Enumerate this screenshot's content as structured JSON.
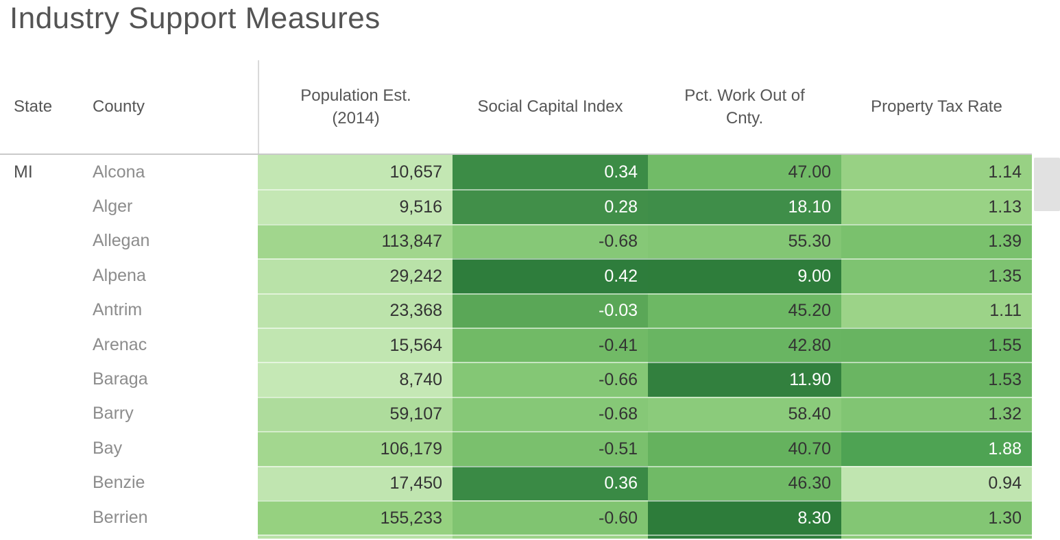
{
  "title": "Industry Support Measures",
  "header": {
    "state": "State",
    "county": "County",
    "measures": [
      "Population Est.\n(2014)",
      "Social Capital Index",
      "Pct. Work Out of\nCnty.",
      "Property Tax Rate"
    ]
  },
  "colors": {
    "header_text": "#565656",
    "county_text": "#8c8c8c",
    "state_text": "#4f4f4f",
    "dark_cell_text": "#333333",
    "light_cell_text": "#ffffff",
    "header_rule": "#c9c9c9",
    "header_divider": "#d9d9d9",
    "scrollbar_thumb": "#e1e1e1"
  },
  "rows": [
    {
      "state": "MI",
      "county": "Alcona",
      "values": [
        "10,657",
        "0.34",
        "47.00",
        "1.14"
      ],
      "bg": [
        "#c3e7b3",
        "#3c8c46",
        "#71bb67",
        "#98d184"
      ],
      "fg": [
        "#333333",
        "#ffffff",
        "#333333",
        "#333333"
      ]
    },
    {
      "state": "",
      "county": "Alger",
      "values": [
        "9,516",
        "0.28",
        "18.10",
        "1.13"
      ],
      "bg": [
        "#c4e7b4",
        "#418f49",
        "#3f8e49",
        "#99d285"
      ],
      "fg": [
        "#333333",
        "#ffffff",
        "#ffffff",
        "#333333"
      ]
    },
    {
      "state": "",
      "county": "Allegan",
      "values": [
        "113,847",
        "-0.68",
        "55.30",
        "1.39"
      ],
      "bg": [
        "#a1d68d",
        "#86c877",
        "#83c674",
        "#7ac16d"
      ],
      "fg": [
        "#333333",
        "#333333",
        "#333333",
        "#333333"
      ]
    },
    {
      "state": "",
      "county": "Alpena",
      "values": [
        "29,242",
        "0.42",
        "9.00",
        "1.35"
      ],
      "bg": [
        "#b9e2a8",
        "#2e7d3c",
        "#2e7d3b",
        "#7ec371"
      ],
      "fg": [
        "#333333",
        "#ffffff",
        "#ffffff",
        "#333333"
      ]
    },
    {
      "state": "",
      "county": "Antrim",
      "values": [
        "23,368",
        "-0.03",
        "45.20",
        "1.11"
      ],
      "bg": [
        "#bce3ab",
        "#5aa757",
        "#6db864",
        "#9cd388"
      ],
      "fg": [
        "#333333",
        "#ffffff",
        "#333333",
        "#333333"
      ]
    },
    {
      "state": "",
      "county": "Arenac",
      "values": [
        "15,564",
        "-0.41",
        "42.80",
        "1.55"
      ],
      "bg": [
        "#c1e6b1",
        "#71ba66",
        "#69b562",
        "#68b461"
      ],
      "fg": [
        "#333333",
        "#333333",
        "#333333",
        "#333333"
      ]
    },
    {
      "state": "",
      "county": "Baraga",
      "values": [
        "8,740",
        "-0.66",
        "11.90",
        "1.53"
      ],
      "bg": [
        "#c5e8b5",
        "#84c775",
        "#32803e",
        "#6ab562"
      ],
      "fg": [
        "#333333",
        "#333333",
        "#ffffff",
        "#333333"
      ]
    },
    {
      "state": "",
      "county": "Barry",
      "values": [
        "59,107",
        "-0.68",
        "58.40",
        "1.32"
      ],
      "bg": [
        "#aedc9c",
        "#86c877",
        "#8bcb7b",
        "#81c573"
      ],
      "fg": [
        "#333333",
        "#333333",
        "#333333",
        "#333333"
      ]
    },
    {
      "state": "",
      "county": "Bay",
      "values": [
        "106,179",
        "-0.51",
        "40.70",
        "1.88"
      ],
      "bg": [
        "#a3d78f",
        "#7ac06d",
        "#65b25e",
        "#4ea353"
      ],
      "fg": [
        "#333333",
        "#333333",
        "#333333",
        "#ffffff"
      ]
    },
    {
      "state": "",
      "county": "Benzie",
      "values": [
        "17,450",
        "0.36",
        "46.30",
        "0.94"
      ],
      "bg": [
        "#c0e5b0",
        "#3a8a45",
        "#70ba66",
        "#c0e5b0"
      ],
      "fg": [
        "#333333",
        "#ffffff",
        "#333333",
        "#333333"
      ]
    },
    {
      "state": "",
      "county": "Berrien",
      "values": [
        "155,233",
        "-0.60",
        "8.30",
        "1.30"
      ],
      "bg": [
        "#96d180",
        "#80c471",
        "#2d7c3a",
        "#83c674"
      ],
      "fg": [
        "#333333",
        "#333333",
        "#ffffff",
        "#333333"
      ]
    }
  ],
  "partial_row_bg": [
    "#b7e1a6",
    "#9bd287",
    "#2f7e3c",
    "#8cca7a"
  ],
  "chart_data": {
    "type": "heatmap",
    "title": "Industry Support Measures",
    "columns": [
      "State",
      "County",
      "Population Est. (2014)",
      "Social Capital Index",
      "Pct. Work Out of Cnty.",
      "Property Tax Rate"
    ],
    "rows": [
      [
        "MI",
        "Alcona",
        10657,
        0.34,
        47.0,
        1.14
      ],
      [
        "MI",
        "Alger",
        9516,
        0.28,
        18.1,
        1.13
      ],
      [
        "MI",
        "Allegan",
        113847,
        -0.68,
        55.3,
        1.39
      ],
      [
        "MI",
        "Alpena",
        29242,
        0.42,
        9.0,
        1.35
      ],
      [
        "MI",
        "Antrim",
        23368,
        -0.03,
        45.2,
        1.11
      ],
      [
        "MI",
        "Arenac",
        15564,
        -0.41,
        42.8,
        1.55
      ],
      [
        "MI",
        "Baraga",
        8740,
        -0.66,
        11.9,
        1.53
      ],
      [
        "MI",
        "Barry",
        59107,
        -0.68,
        58.4,
        1.32
      ],
      [
        "MI",
        "Bay",
        106179,
        -0.51,
        40.7,
        1.88
      ],
      [
        "MI",
        "Benzie",
        17450,
        0.36,
        46.3,
        0.94
      ],
      [
        "MI",
        "Berrien",
        155233,
        -0.6,
        8.3,
        1.3
      ]
    ],
    "color_encoding": "Sequential green scale per measure column: darker = higher value for Population Est., Social Capital Index and Property Tax Rate; darker = lower value for Pct. Work Out of Cnty. White text on darkest cells.",
    "legend": "none",
    "grid": "off"
  }
}
